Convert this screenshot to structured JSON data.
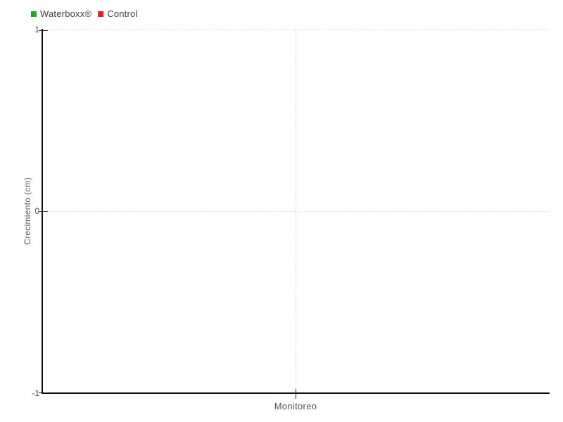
{
  "legend": {
    "items": [
      {
        "label": "Waterboxx®",
        "color": "#28a228"
      },
      {
        "label": "Control",
        "color": "#ea1c23"
      }
    ]
  },
  "axes": {
    "y": {
      "title": "Crecimiento (cm)",
      "ticks": [
        "1",
        "0",
        "-1"
      ]
    },
    "x": {
      "title": "Monitoreo"
    }
  },
  "chart_data": {
    "type": "line",
    "title": "",
    "xlabel": "Monitoreo",
    "ylabel": "Crecimiento (cm)",
    "ylim": [
      -1,
      1
    ],
    "yticks": [
      1,
      0,
      -1
    ],
    "x_tick_count": 1,
    "grid": "dashed",
    "grid_color": "#e2e2e2",
    "legend_position": "top-left",
    "series": [
      {
        "name": "Waterboxx®",
        "color": "#28a228",
        "values": []
      },
      {
        "name": "Control",
        "color": "#ea1c23",
        "values": []
      }
    ]
  }
}
